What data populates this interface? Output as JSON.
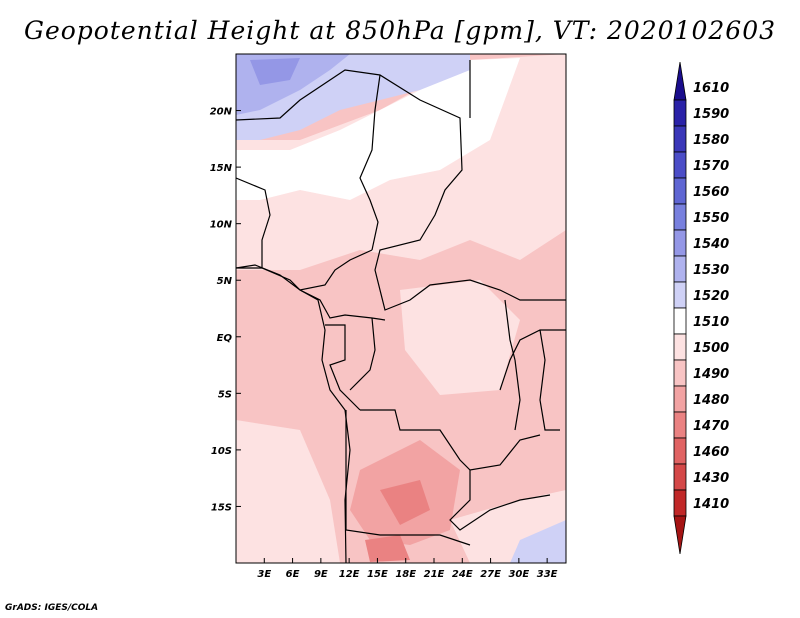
{
  "title": "Geopotential Height at 850hPa [gpm], VT: 2020102603",
  "credit": "GrADS: IGES/COLA",
  "axes": {
    "lat_labels": [
      "20N",
      "15N",
      "10N",
      "5N",
      "EQ",
      "5S",
      "10S",
      "15S"
    ],
    "lat_values": [
      20,
      15,
      10,
      5,
      0,
      -5,
      -10,
      -15
    ],
    "lon_labels": [
      "3E",
      "6E",
      "9E",
      "12E",
      "15E",
      "18E",
      "21E",
      "24E",
      "27E",
      "30E",
      "33E"
    ],
    "lon_values": [
      3,
      6,
      9,
      12,
      15,
      18,
      21,
      24,
      27,
      30,
      33
    ],
    "lon_range": [
      0,
      35
    ],
    "lat_range": [
      -20,
      25
    ]
  },
  "colorbar": {
    "levels": [
      "1610",
      "1590",
      "1580",
      "1570",
      "1560",
      "1550",
      "1540",
      "1530",
      "1520",
      "1510",
      "1500",
      "1490",
      "1480",
      "1470",
      "1460",
      "1430",
      "1410"
    ],
    "colors": [
      "#1a0d8c",
      "#2a22a8",
      "#3a37b8",
      "#4b4dc7",
      "#5f66d3",
      "#7880de",
      "#9497e6",
      "#afb2ee",
      "#cfd1f6",
      "#ffffff",
      "#fde2e2",
      "#f8c4c4",
      "#f2a3a3",
      "#ea8282",
      "#e06363",
      "#d44848",
      "#c12828",
      "#a51414"
    ]
  },
  "field": {
    "description_legend": "gpm"
  }
}
